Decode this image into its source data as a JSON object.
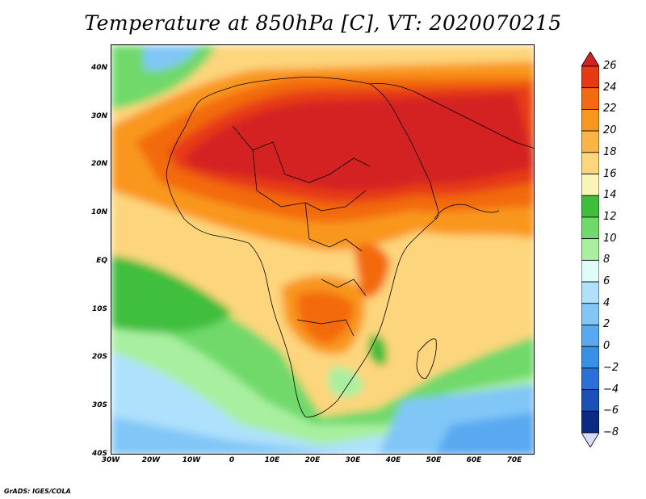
{
  "title": "Temperature at 850hPa [C], VT: 2020070215",
  "footer": "GrADS: IGES/COLA",
  "map": {
    "lon_range": [
      -30,
      75
    ],
    "lat_range": [
      -40,
      45
    ],
    "lat_ticks": [
      {
        "value": 40,
        "label": "40N"
      },
      {
        "value": 30,
        "label": "30N"
      },
      {
        "value": 20,
        "label": "20N"
      },
      {
        "value": 10,
        "label": "10N"
      },
      {
        "value": 0,
        "label": "EQ"
      },
      {
        "value": -10,
        "label": "10S"
      },
      {
        "value": -20,
        "label": "20S"
      },
      {
        "value": -30,
        "label": "30S"
      },
      {
        "value": -40,
        "label": "40S"
      }
    ],
    "lon_ticks": [
      {
        "value": -30,
        "label": "30W"
      },
      {
        "value": -20,
        "label": "20W"
      },
      {
        "value": -10,
        "label": "10W"
      },
      {
        "value": 0,
        "label": "0"
      },
      {
        "value": 10,
        "label": "10E"
      },
      {
        "value": 20,
        "label": "20E"
      },
      {
        "value": 30,
        "label": "30E"
      },
      {
        "value": 40,
        "label": "40E"
      },
      {
        "value": 50,
        "label": "50E"
      },
      {
        "value": 60,
        "label": "60E"
      },
      {
        "value": 70,
        "label": "70E"
      }
    ]
  },
  "colorbar": {
    "levels": [
      {
        "value": 26,
        "label": "26"
      },
      {
        "value": 24,
        "label": "24"
      },
      {
        "value": 22,
        "label": "22"
      },
      {
        "value": 20,
        "label": "20"
      },
      {
        "value": 18,
        "label": "18"
      },
      {
        "value": 16,
        "label": "16"
      },
      {
        "value": 14,
        "label": "14"
      },
      {
        "value": 12,
        "label": "12"
      },
      {
        "value": 10,
        "label": "10"
      },
      {
        "value": 8,
        "label": "8"
      },
      {
        "value": 6,
        "label": "6"
      },
      {
        "value": 4,
        "label": "4"
      },
      {
        "value": 2,
        "label": "2"
      },
      {
        "value": 0,
        "label": "0"
      },
      {
        "value": -2,
        "label": "−2"
      },
      {
        "value": -4,
        "label": "−4"
      },
      {
        "value": -6,
        "label": "−6"
      },
      {
        "value": -8,
        "label": "−8"
      }
    ],
    "colors": [
      "#d42020",
      "#e63a12",
      "#f36a10",
      "#f9961e",
      "#fbb544",
      "#fdd57c",
      "#f9f5b4",
      "#3fbe3c",
      "#6fd96a",
      "#a8f0a0",
      "#e0fcf6",
      "#aee1fb",
      "#80c6f7",
      "#58a9f0",
      "#3a8fe6",
      "#2a70d6",
      "#1b50b8",
      "#0c2a84",
      "#d8dcfc"
    ]
  }
}
